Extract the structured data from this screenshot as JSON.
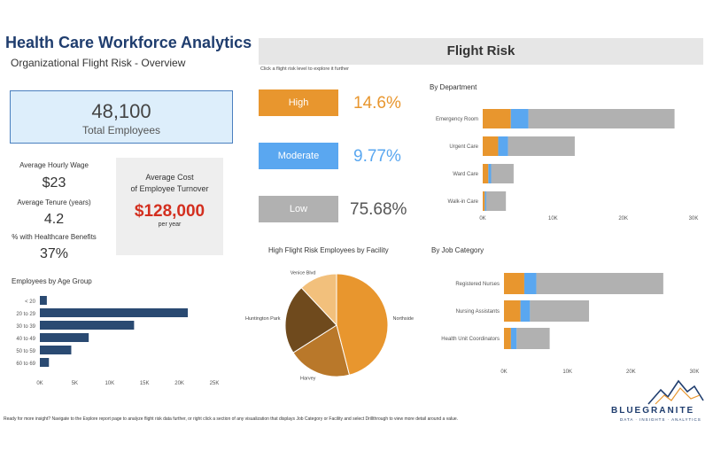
{
  "header": {
    "title": "Health Care Workforce Analytics",
    "subtitle": "Organizational Flight Risk - Overview"
  },
  "flight_banner": {
    "title": "Flight Risk",
    "hint": "Click a flight risk level to explore it further"
  },
  "kpis": {
    "total_value": "48,100",
    "total_label": "Total Employees",
    "wage_label": "Average Hourly Wage",
    "wage_value": "$23",
    "tenure_label": "Average Tenure (years)",
    "tenure_value": "4.2",
    "benefits_label": "% with Healthcare Benefits",
    "benefits_value": "37%",
    "cost_title_1": "Average Cost",
    "cost_title_2": "of Employee Turnover",
    "cost_value": "$128,000",
    "cost_sub": "per year"
  },
  "risk_levels": [
    {
      "label": "High",
      "pct": "14.6%",
      "color": "#e8962e",
      "text_color": "#e8962e"
    },
    {
      "label": "Moderate",
      "pct": "9.77%",
      "color": "#5aa7f0",
      "text_color": "#5aa7f0"
    },
    {
      "label": "Low",
      "pct": "75.68%",
      "color": "#b1b1b1",
      "text_color": "#555555"
    }
  ],
  "colors": {
    "high": "#e8962e",
    "moderate": "#5aa7f0",
    "low": "#b1b1b1",
    "navy": "#2a4a72"
  },
  "chart_data": [
    {
      "type": "bar",
      "title": "Employees by Age Group",
      "orientation": "horizontal",
      "categories": [
        "< 20",
        "20 to 29",
        "30 to 39",
        "40 to 49",
        "50 to 59",
        "60 to 69"
      ],
      "values": [
        1000,
        21200,
        13500,
        7000,
        4500,
        1300
      ],
      "xlim": [
        0,
        25000
      ],
      "xticks": [
        "0K",
        "5K",
        "10K",
        "15K",
        "20K",
        "25K"
      ]
    },
    {
      "type": "bar",
      "title": "By Department",
      "orientation": "horizontal",
      "stacked": true,
      "categories": [
        "Emergency Room",
        "Urgent Care",
        "Ward Care",
        "Walk-in Care"
      ],
      "series": [
        {
          "values": [
            4000,
            2200,
            800,
            300
          ]
        },
        {
          "values": [
            2500,
            1400,
            400,
            200
          ]
        },
        {
          "values": [
            20800,
            9500,
            3200,
            2800
          ]
        }
      ],
      "xlim": [
        0,
        30000
      ],
      "xticks": [
        "0K",
        "10K",
        "20K",
        "30K"
      ]
    },
    {
      "type": "pie",
      "title": "High Flight Risk Employees by Facility",
      "slices": [
        {
          "label": "Northside",
          "value": 46
        },
        {
          "label": "Harvey",
          "value": 20
        },
        {
          "label": "Huntington Park",
          "value": 22
        },
        {
          "label": "Venice Blvd",
          "value": 12
        }
      ]
    },
    {
      "type": "bar",
      "title": "By Job Category",
      "orientation": "horizontal",
      "stacked": true,
      "categories": [
        "Registered Nurses",
        "Nursing Assistants",
        "Health Unit Coordinators"
      ],
      "series": [
        {
          "values": [
            3200,
            2600,
            1100
          ]
        },
        {
          "values": [
            1900,
            1500,
            900
          ]
        },
        {
          "values": [
            20000,
            9300,
            5200
          ]
        }
      ],
      "xlim": [
        0,
        30000
      ],
      "xticks": [
        "0K",
        "10K",
        "20K",
        "30K"
      ]
    }
  ],
  "footer": {
    "text": "Ready for more insight? Navigate to the Explore report page to analyze flight risk data further, or right click a section of any visualization that displays Job Category or Facility and select Drillthrough to view more detail around a value."
  },
  "brand": {
    "name": "BLUEGRANITE",
    "tagline": "DATA · INSIGHTS · ANALYTICS"
  }
}
